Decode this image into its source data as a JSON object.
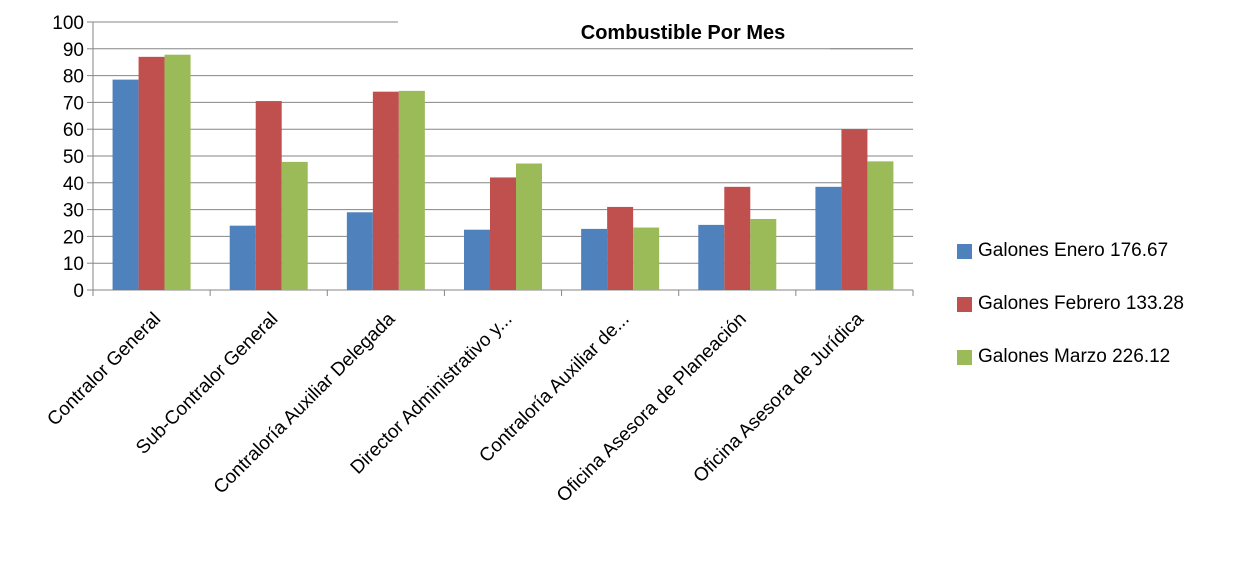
{
  "chart_data": {
    "type": "bar",
    "title": "Combustible Por Mes",
    "categories": [
      "Contralor General",
      "Sub-Contralor General",
      "Contraloría Auxiliar Delegada",
      "Director Administrativo y...",
      "Contraloría  Auxiliar de...",
      "Oficina Asesora de  Planeación",
      "Oficina Asesora de Jurídica"
    ],
    "series": [
      {
        "name": "Galones Enero 176.67",
        "color": "#4F81BD",
        "values": [
          78.5,
          24,
          29,
          22.5,
          22.8,
          24.3,
          38.5
        ]
      },
      {
        "name": "Galones Febrero 133.28",
        "color": "#C0504D",
        "values": [
          87,
          70.5,
          74,
          42,
          31,
          38.5,
          60
        ]
      },
      {
        "name": "Galones Marzo 226.12",
        "color": "#9BBB59",
        "values": [
          87.8,
          47.8,
          74.3,
          47.2,
          23.3,
          26.5,
          48
        ]
      }
    ],
    "ylim": [
      0,
      100
    ],
    "yticks": [
      0,
      10,
      20,
      30,
      40,
      50,
      60,
      70,
      80,
      90,
      100
    ],
    "grid": true,
    "legend_position": "right"
  }
}
